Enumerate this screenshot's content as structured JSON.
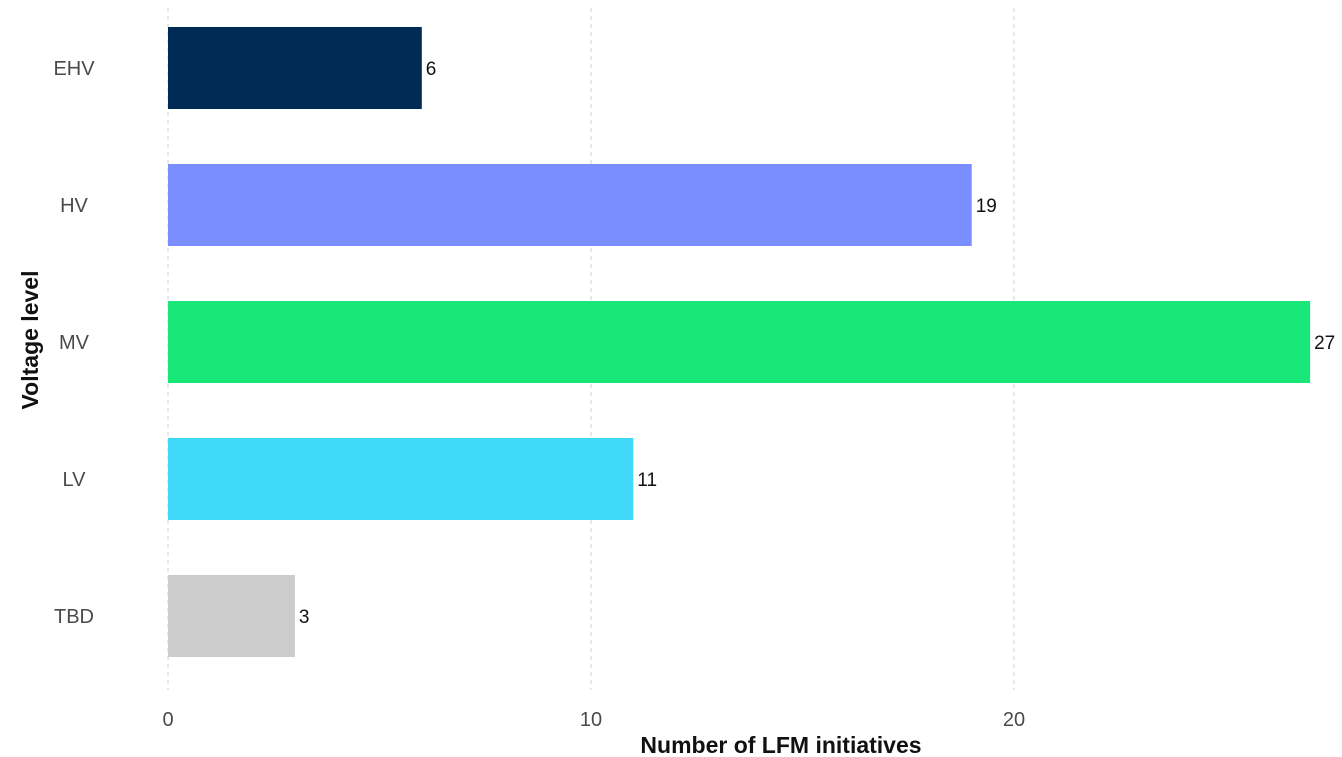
{
  "chart_data": {
    "type": "bar",
    "orientation": "horizontal",
    "categories": [
      "EHV",
      "HV",
      "MV",
      "LV",
      "TBD"
    ],
    "values": [
      6,
      19,
      27,
      11,
      3
    ],
    "colors": [
      "#002b55",
      "#7a8eff",
      "#17e878",
      "#3fd8f8",
      "#cccccc"
    ],
    "xlabel": "Number of LFM initiatives",
    "ylabel": "Voltage level",
    "xticks": [
      0,
      10,
      20
    ],
    "xlim": [
      0,
      27
    ],
    "grid": true,
    "data_labels": true
  }
}
